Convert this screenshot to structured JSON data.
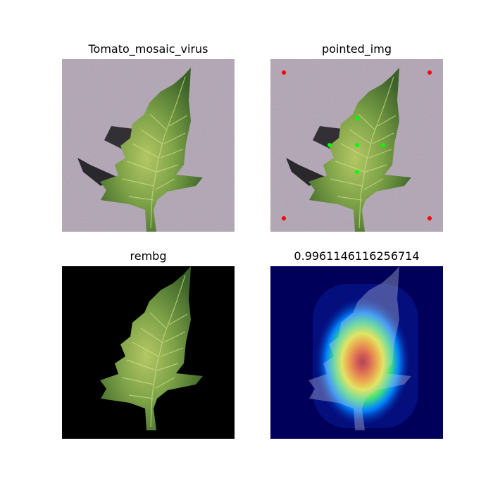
{
  "panels": [
    {
      "title": "Tomato_mosaic_virus",
      "image": "original-leaf-photo"
    },
    {
      "title": "pointed_img",
      "image": "leaf-photo-with-prompt-points",
      "points": {
        "positive_color": "#00ff00",
        "negative_color": "#ff0000",
        "positive_count": 5,
        "negative_count": 4
      }
    },
    {
      "title": "rembg",
      "image": "leaf-on-black-background"
    },
    {
      "title": "0.9961146116256714",
      "image": "gradcam-heatmap-overlay"
    }
  ],
  "colors": {
    "background_photo": "#a89bab",
    "leaf_dark": "#3f6a2c",
    "leaf_light": "#a9bf5d",
    "heatmap_base": "#00005a"
  }
}
